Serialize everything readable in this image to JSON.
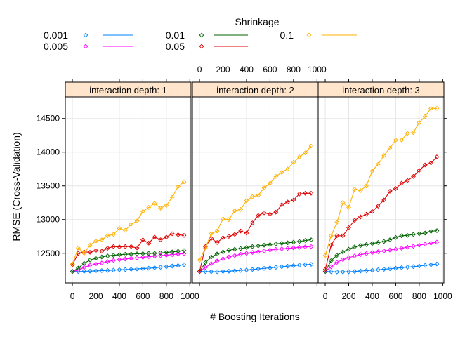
{
  "chart_data": {
    "type": "line",
    "legend": {
      "title": "Shrinkage",
      "placement": "top",
      "entries": [
        "0.001",
        "0.005",
        "0.01",
        "0.05",
        "0.1"
      ]
    },
    "colors": {
      "0.001": "#0080ff",
      "0.005": "#ff00ff",
      "0.01": "#006400",
      "0.05": "#e00000",
      "0.1": "#ffb000"
    },
    "xlabel": "# Boosting Iterations",
    "ylabel": "RMSE (Cross-Validation)",
    "xlim": [
      -60,
      1010
    ],
    "ylim": [
      12060,
      14820
    ],
    "xticks": [
      0,
      200,
      400,
      600,
      800,
      1000
    ],
    "xtick_labels": [
      "0",
      "200",
      "400",
      "600",
      "800",
      "1000"
    ],
    "yticks": [
      12500,
      13000,
      13500,
      14000,
      14500
    ],
    "ytick_labels": [
      "12500",
      "13000",
      "13500",
      "14000",
      "14500"
    ],
    "grid": true,
    "x": [
      1,
      50,
      100,
      150,
      200,
      250,
      300,
      350,
      400,
      450,
      500,
      550,
      600,
      650,
      700,
      750,
      800,
      850,
      900,
      950
    ],
    "panels": [
      {
        "label": "interaction depth: 1",
        "series": [
          {
            "name": "0.001",
            "values": [
              12230,
              12228,
              12232,
              12235,
              12238,
              12242,
              12245,
              12250,
              12255,
              12258,
              12262,
              12268,
              12272,
              12278,
              12285,
              12292,
              12300,
              12310,
              12318,
              12330
            ]
          },
          {
            "name": "0.005",
            "values": [
              12230,
              12250,
              12290,
              12320,
              12340,
              12355,
              12375,
              12395,
              12405,
              12415,
              12425,
              12432,
              12440,
              12448,
              12458,
              12465,
              12472,
              12480,
              12488,
              12495
            ]
          },
          {
            "name": "0.01",
            "values": [
              12230,
              12280,
              12350,
              12400,
              12425,
              12445,
              12460,
              12470,
              12478,
              12485,
              12488,
              12492,
              12495,
              12498,
              12500,
              12505,
              12512,
              12520,
              12530,
              12540
            ]
          },
          {
            "name": "0.05",
            "values": [
              12330,
              12500,
              12520,
              12515,
              12540,
              12530,
              12575,
              12600,
              12595,
              12600,
              12600,
              12580,
              12700,
              12650,
              12740,
              12700,
              12740,
              12790,
              12775,
              12765
            ]
          },
          {
            "name": "0.1",
            "values": [
              12340,
              12580,
              12500,
              12620,
              12680,
              12700,
              12760,
              12780,
              12870,
              12840,
              12930,
              12980,
              13120,
              13180,
              13240,
              13170,
              13210,
              13330,
              13490,
              13560
            ]
          }
        ]
      },
      {
        "label": "interaction depth: 2",
        "series": [
          {
            "name": "0.001",
            "values": [
              12230,
              12228,
              12226,
              12227,
              12230,
              12234,
              12240,
              12246,
              12252,
              12260,
              12268,
              12276,
              12284,
              12292,
              12300,
              12308,
              12316,
              12324,
              12330,
              12335
            ]
          },
          {
            "name": "0.005",
            "values": [
              12230,
              12290,
              12345,
              12385,
              12418,
              12445,
              12465,
              12485,
              12500,
              12512,
              12522,
              12535,
              12548,
              12558,
              12565,
              12572,
              12580,
              12588,
              12595,
              12600
            ]
          },
          {
            "name": "0.01",
            "values": [
              12230,
              12360,
              12445,
              12490,
              12520,
              12545,
              12560,
              12570,
              12585,
              12600,
              12610,
              12620,
              12630,
              12640,
              12648,
              12655,
              12665,
              12675,
              12690,
              12700
            ]
          },
          {
            "name": "0.05",
            "values": [
              12230,
              12600,
              12720,
              12660,
              12730,
              12750,
              12780,
              12830,
              12800,
              12950,
              13060,
              13100,
              13080,
              13110,
              13220,
              13260,
              13290,
              13380,
              13390,
              13390
            ]
          },
          {
            "name": "0.1",
            "values": [
              12400,
              12580,
              12790,
              12830,
              13010,
              13000,
              13130,
              13150,
              13280,
              13340,
              13360,
              13470,
              13540,
              13640,
              13700,
              13750,
              13850,
              13930,
              13990,
              14090
            ]
          }
        ]
      },
      {
        "label": "interaction depth: 3",
        "series": [
          {
            "name": "0.001",
            "values": [
              12230,
              12226,
              12224,
              12224,
              12226,
              12230,
              12236,
              12242,
              12248,
              12255,
              12262,
              12270,
              12278,
              12286,
              12294,
              12302,
              12310,
              12320,
              12330,
              12340
            ]
          },
          {
            "name": "0.005",
            "values": [
              12230,
              12300,
              12365,
              12405,
              12435,
              12460,
              12480,
              12495,
              12510,
              12523,
              12535,
              12548,
              12560,
              12575,
              12590,
              12605,
              12620,
              12635,
              12650,
              12665
            ]
          },
          {
            "name": "0.01",
            "values": [
              12230,
              12390,
              12470,
              12520,
              12560,
              12595,
              12615,
              12630,
              12645,
              12660,
              12675,
              12700,
              12735,
              12760,
              12765,
              12780,
              12790,
              12800,
              12825,
              12835
            ]
          },
          {
            "name": "0.05",
            "values": [
              12260,
              12620,
              12760,
              12760,
              12880,
              12990,
              13040,
              13080,
              13120,
              13200,
              13290,
              13420,
              13460,
              13540,
              13580,
              13640,
              13730,
              13810,
              13840,
              13930
            ]
          },
          {
            "name": "0.1",
            "values": [
              12470,
              12760,
              12960,
              13250,
              13180,
              13450,
              13430,
              13500,
              13720,
              13820,
              13950,
              14060,
              14180,
              14180,
              14280,
              14290,
              14440,
              14530,
              14650,
              14650
            ]
          }
        ]
      }
    ]
  }
}
